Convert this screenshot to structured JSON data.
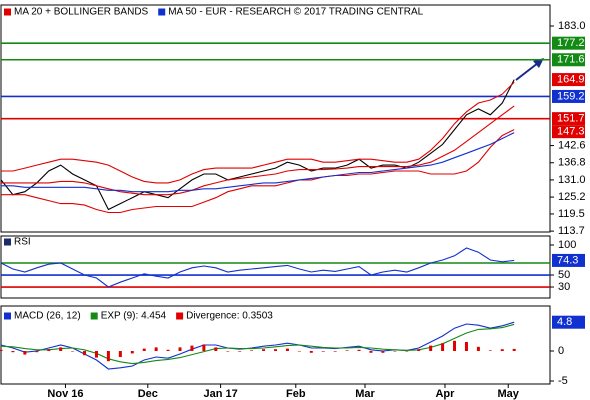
{
  "chart_data": [
    {
      "type": "line",
      "panel": "price",
      "legend": [
        {
          "label": "MA 20 + BOLLINGER BANDS",
          "color": "#e00000"
        },
        {
          "label": "MA 50 - EUR - RESEARCH © 2017 TRADING CENTRAL",
          "color": "#1030d0"
        }
      ],
      "x": [
        0,
        1,
        2,
        3,
        4,
        5,
        6,
        7,
        8,
        9,
        10,
        11,
        12,
        13,
        14,
        15,
        16,
        17,
        18,
        19,
        20,
        21,
        22,
        23,
        24,
        25,
        26,
        27,
        28,
        29,
        30,
        31,
        32,
        33,
        34,
        35,
        36,
        37,
        38,
        39,
        40,
        41,
        42,
        43
      ],
      "xlim": [
        0,
        46
      ],
      "series": [
        {
          "color": "#000000",
          "values": [
            131,
            126,
            127,
            130,
            134,
            136,
            133,
            131,
            129,
            121,
            123,
            125,
            127,
            126,
            125,
            128,
            131,
            133,
            133,
            131,
            132,
            133,
            134,
            135,
            137,
            136,
            134,
            135,
            135,
            136,
            138,
            135,
            136,
            136,
            135,
            137,
            140,
            143,
            148,
            153,
            155,
            153,
            157,
            164.9
          ]
        },
        {
          "color": "#e00000",
          "values": [
            134,
            134,
            135,
            136,
            137,
            138,
            138,
            137.5,
            137,
            136,
            134,
            132,
            130.5,
            130,
            130,
            131,
            133,
            134.5,
            135,
            135,
            135,
            135,
            136,
            137,
            138,
            138,
            138,
            137,
            137,
            137.5,
            138,
            138,
            137.5,
            137,
            137,
            138,
            141,
            145,
            150,
            154,
            157,
            158,
            160,
            164
          ]
        },
        {
          "color": "#e00000",
          "values": [
            130,
            130,
            130,
            130,
            130,
            130.5,
            130.5,
            130,
            129,
            128,
            127,
            126.5,
            126,
            126,
            126,
            126.5,
            127.5,
            129,
            130,
            131,
            131.5,
            132,
            132.5,
            133,
            134,
            134.5,
            134.5,
            134.5,
            134.7,
            135,
            135.5,
            135.5,
            135.5,
            135.5,
            135.5,
            136,
            137,
            139,
            141,
            144,
            147,
            150,
            153,
            156
          ]
        },
        {
          "color": "#e00000",
          "values": [
            126,
            126,
            126,
            125,
            124,
            123,
            123,
            122.5,
            121,
            120,
            120,
            121,
            121.5,
            122,
            122,
            122,
            122,
            123.5,
            125,
            127,
            128,
            129,
            129,
            129,
            130,
            131,
            131,
            132,
            132.5,
            132.5,
            133,
            133,
            133.5,
            134,
            134,
            134,
            133,
            133,
            133,
            134,
            137,
            142,
            146,
            148
          ]
        },
        {
          "color": "#1030d0",
          "values": [
            129,
            129,
            128.5,
            128.5,
            128.5,
            128.5,
            128.5,
            128.5,
            128,
            127.5,
            127.5,
            127,
            127,
            127,
            127,
            127.5,
            127.5,
            128,
            128,
            128.5,
            129,
            129.5,
            130,
            130,
            130.5,
            131,
            131.5,
            132,
            132.5,
            133,
            133.5,
            133.5,
            134,
            134.5,
            135,
            135.5,
            136,
            137,
            138.5,
            140,
            141.5,
            143,
            145,
            147
          ]
        }
      ],
      "ylim": [
        113.4,
        190.1
      ],
      "yticks": [
        {
          "value": 183,
          "label": "183.0"
        },
        142.6,
        136.8,
        {
          "value": 131,
          "label": "131.0"
        },
        125.2,
        119.5,
        113.7
      ],
      "levels": [
        {
          "value": 177.2,
          "color": "#138a13"
        },
        {
          "value": 171.6,
          "color": "#138a13"
        },
        {
          "value": 159.2,
          "color": "#1030d0"
        },
        {
          "value": 151.7,
          "color": "#e00000"
        }
      ],
      "level_labels": true,
      "markers": [
        {
          "value": 164.9,
          "color": "#e00000"
        },
        {
          "value": 147.3,
          "color": "#e00000"
        }
      ]
    },
    {
      "type": "line",
      "panel": "rsi",
      "legend": [
        {
          "label": "RSI",
          "color": "#1a2a6c"
        }
      ],
      "x": [
        0,
        1,
        2,
        3,
        4,
        5,
        6,
        7,
        8,
        9,
        10,
        11,
        12,
        13,
        14,
        15,
        16,
        17,
        18,
        19,
        20,
        21,
        22,
        23,
        24,
        25,
        26,
        27,
        28,
        29,
        30,
        31,
        32,
        33,
        34,
        35,
        36,
        37,
        38,
        39,
        40,
        41,
        42,
        43
      ],
      "xlim": [
        0,
        46
      ],
      "series": [
        {
          "color": "#1030d0",
          "values": [
            70,
            60,
            55,
            62,
            68,
            70,
            60,
            50,
            45,
            30,
            38,
            45,
            52,
            48,
            45,
            55,
            62,
            65,
            62,
            55,
            58,
            60,
            62,
            64,
            66,
            60,
            55,
            58,
            56,
            60,
            64,
            50,
            55,
            58,
            55,
            62,
            70,
            75,
            82,
            95,
            88,
            75,
            72,
            74.3
          ]
        }
      ],
      "ylim": [
        11.7,
        115
      ],
      "yticks": [
        100,
        50,
        30
      ],
      "levels": [
        {
          "value": 70,
          "color": "#138a13"
        },
        {
          "value": 50,
          "color": "#1030d0"
        },
        {
          "value": 30,
          "color": "#e00000"
        }
      ],
      "level_labels": false,
      "markers": [
        {
          "value": 74.3,
          "color": "#1030d0"
        }
      ]
    },
    {
      "type": "line",
      "panel": "macd",
      "x": [
        0,
        1,
        2,
        3,
        4,
        5,
        6,
        7,
        8,
        9,
        10,
        11,
        12,
        13,
        14,
        15,
        16,
        17,
        18,
        19,
        20,
        21,
        22,
        23,
        24,
        25,
        26,
        27,
        28,
        29,
        30,
        31,
        32,
        33,
        34,
        35,
        36,
        37,
        38,
        39,
        40,
        41,
        42,
        43
      ],
      "xlim": [
        0,
        46
      ],
      "series": [
        {
          "name": "MACD (26, 12)",
          "color": "#1030d0",
          "values": [
            1,
            0.5,
            -0.2,
            0,
            0.5,
            1,
            0.5,
            -0.5,
            -1.5,
            -3,
            -2.8,
            -2.5,
            -1.5,
            -1,
            -1.2,
            -0.5,
            0.3,
            1,
            1,
            0.5,
            0.3,
            0.5,
            0.8,
            1,
            1.3,
            1,
            0.5,
            0.5,
            0.4,
            0.6,
            0.8,
            0.2,
            0,
            0.2,
            0.1,
            0.5,
            1.5,
            2.5,
            3.8,
            4.5,
            4.3,
            3.8,
            4.2,
            4.8
          ]
        },
        {
          "name": "EXP (9): 4.454",
          "color": "#138a13",
          "values": [
            0.8,
            0.7,
            0.4,
            0.2,
            0.2,
            0.4,
            0.5,
            0.2,
            -0.4,
            -1.3,
            -1.8,
            -2.1,
            -1.9,
            -1.6,
            -1.4,
            -1.1,
            -0.6,
            -0.1,
            0.4,
            0.5,
            0.4,
            0.4,
            0.5,
            0.7,
            0.9,
            1,
            0.8,
            0.6,
            0.5,
            0.5,
            0.6,
            0.5,
            0.3,
            0.2,
            0.1,
            0.2,
            0.6,
            1.2,
            2.1,
            3,
            3.6,
            3.7,
            3.9,
            4.454
          ]
        },
        {
          "name": "Divergence: 0.3503",
          "color": "#e00000",
          "kind": "histogram",
          "values": [
            0.2,
            -0.2,
            -0.6,
            -0.2,
            0.3,
            0.6,
            0,
            -0.7,
            -1.1,
            -1.7,
            -1,
            -0.4,
            0.4,
            0.6,
            0.2,
            0.6,
            0.9,
            1.1,
            0.6,
            0,
            -0.1,
            0.1,
            0.3,
            0.3,
            0.4,
            0,
            -0.3,
            -0.1,
            -0.1,
            0.1,
            0.2,
            -0.3,
            -0.3,
            0,
            0,
            0.3,
            0.9,
            1.3,
            1.7,
            1.5,
            0.7,
            0.1,
            0.3,
            0.3503
          ]
        }
      ],
      "ylim": [
        -5.5,
        7.5
      ],
      "yticks": [
        0,
        -5
      ],
      "markers": [
        {
          "value": 4.8,
          "color": "#1030d0"
        }
      ],
      "xticks": [
        {
          "value": 5.4,
          "label": "Nov 16"
        },
        {
          "value": 12.3,
          "label": "Dec"
        },
        {
          "value": 18.4,
          "label": "Jan 17"
        },
        {
          "value": 24.7,
          "label": "Feb"
        },
        {
          "value": 30.5,
          "label": "Mar"
        },
        {
          "value": 37.2,
          "label": "Apr"
        },
        {
          "value": 42.5,
          "label": "May"
        }
      ]
    }
  ]
}
